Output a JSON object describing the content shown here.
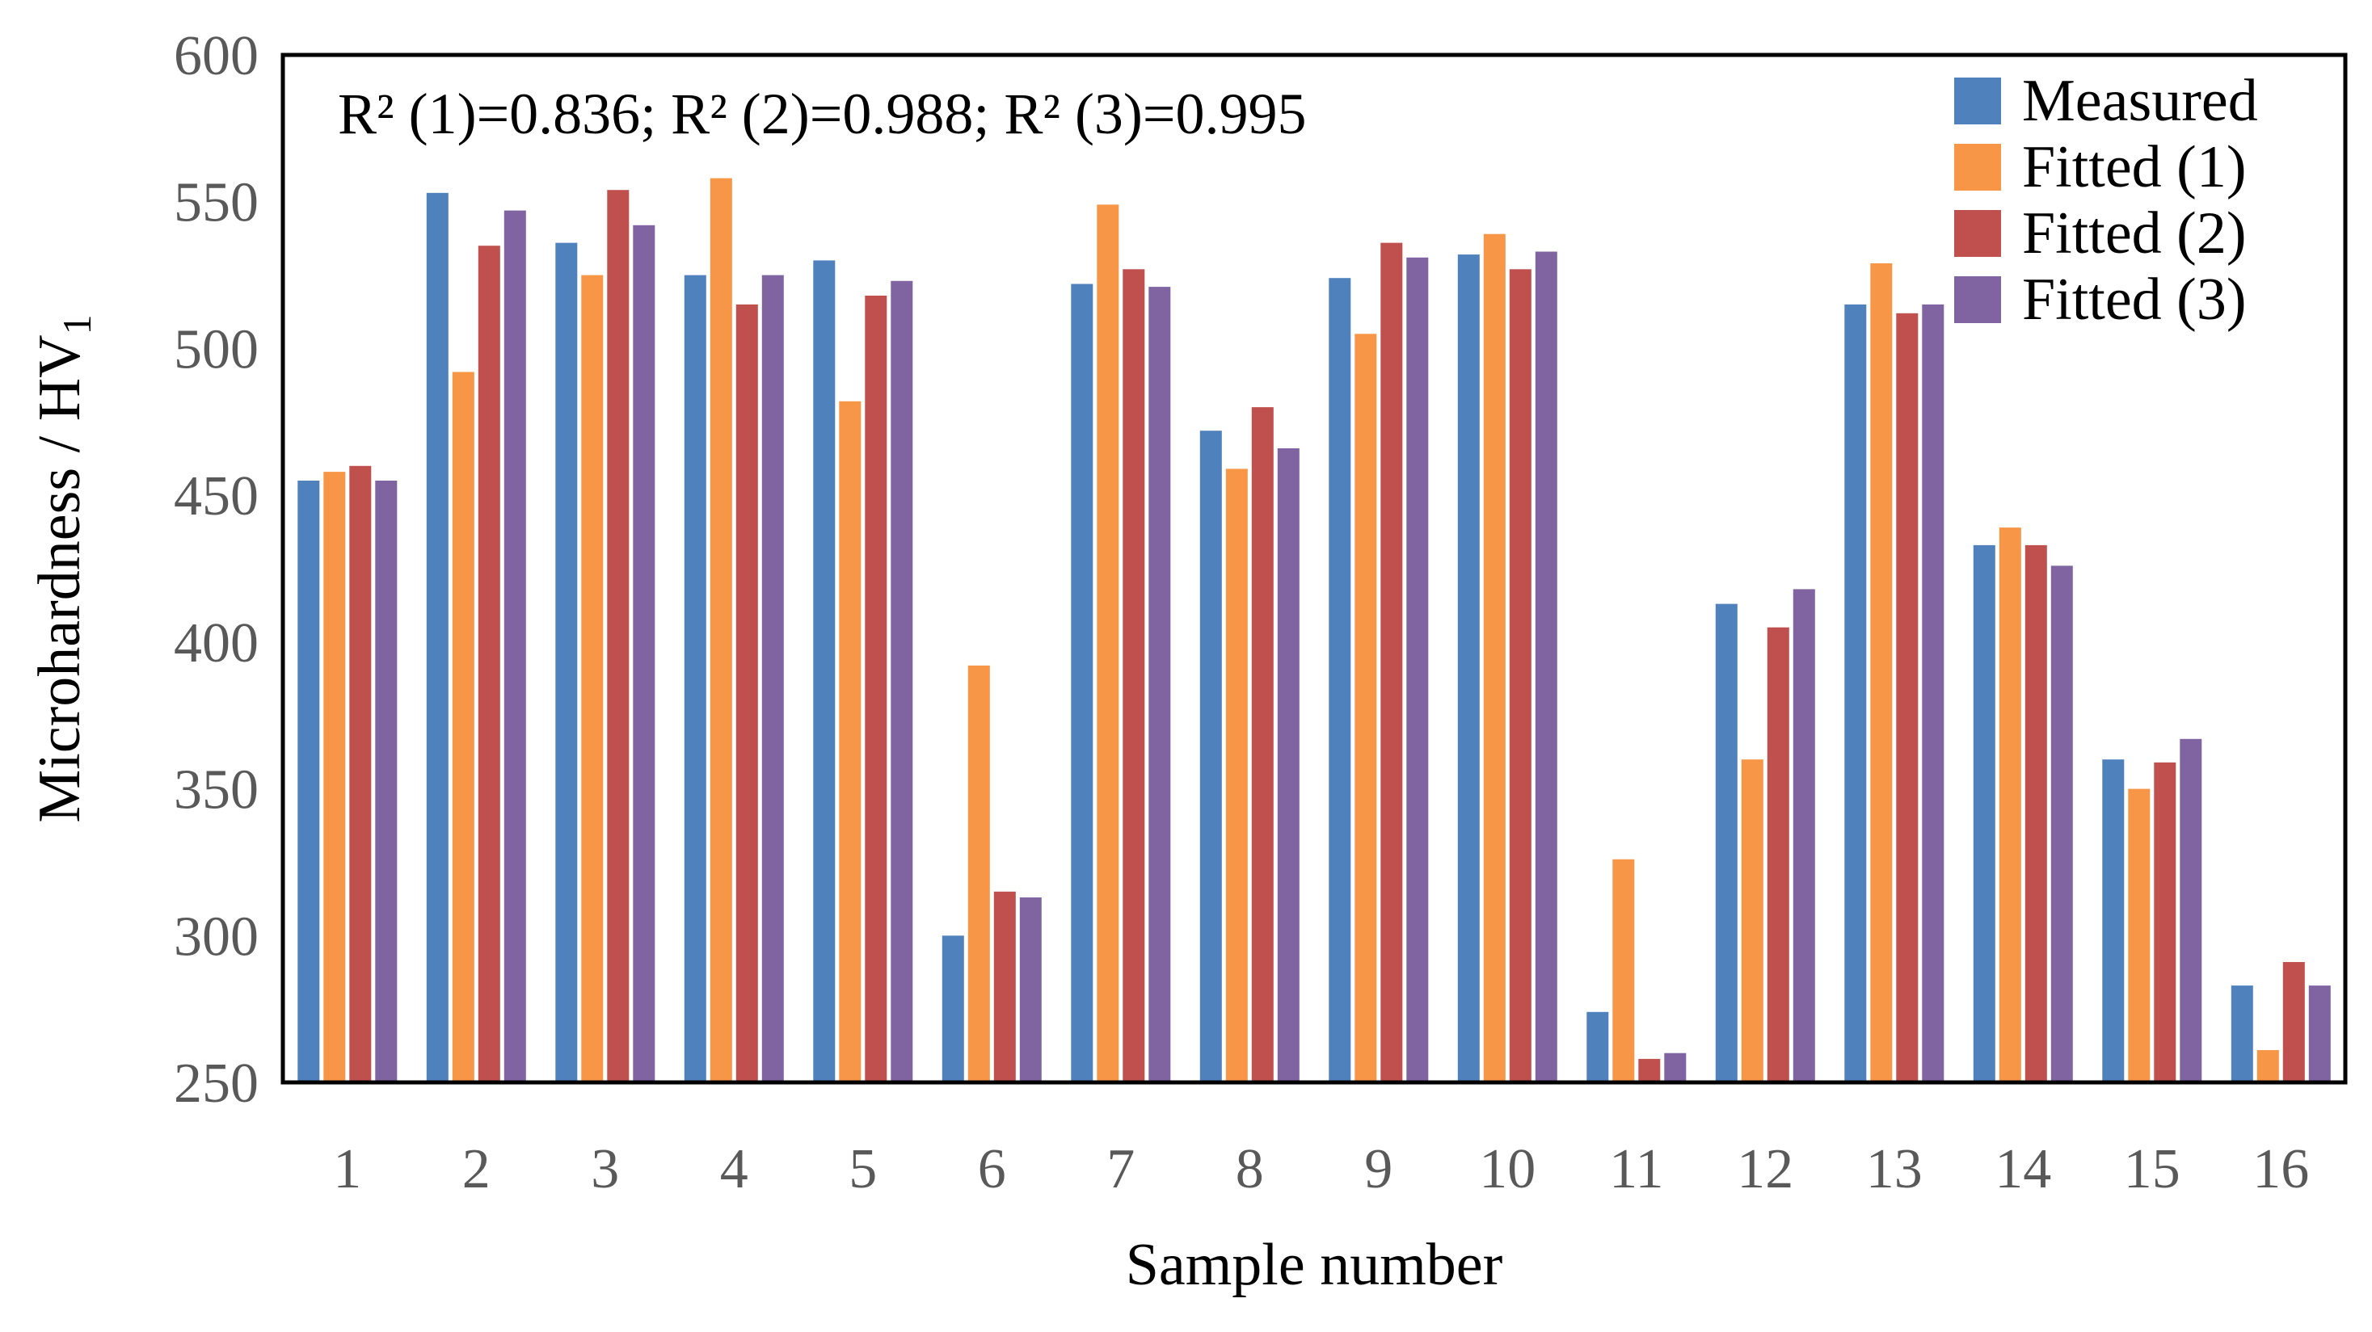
{
  "chart_data": {
    "type": "bar",
    "title": "",
    "xlabel": "Sample number",
    "ylabel": "Microhardness / HV",
    "ylabel_subscript": "1",
    "ylim": [
      250,
      600
    ],
    "yticks": [
      250,
      300,
      350,
      400,
      450,
      500,
      550,
      600
    ],
    "grid": false,
    "legend_position": "top-right",
    "categories": [
      "1",
      "2",
      "3",
      "4",
      "5",
      "6",
      "7",
      "8",
      "9",
      "10",
      "11",
      "12",
      "13",
      "14",
      "15",
      "16"
    ],
    "series": [
      {
        "name": "Measured",
        "color": "#4F81BD",
        "values": [
          455,
          553,
          536,
          525,
          530,
          300,
          522,
          472,
          524,
          532,
          274,
          413,
          515,
          433,
          360,
          283
        ]
      },
      {
        "name": "Fitted (1)",
        "color": "#F79646",
        "values": [
          458,
          492,
          525,
          558,
          482,
          392,
          549,
          459,
          505,
          539,
          326,
          360,
          529,
          439,
          350,
          261
        ]
      },
      {
        "name": "Fitted (2)",
        "color": "#C0504D",
        "values": [
          460,
          535,
          554,
          515,
          518,
          315,
          527,
          480,
          536,
          527,
          258,
          405,
          512,
          433,
          359,
          291
        ]
      },
      {
        "name": "Fitted (3)",
        "color": "#8064A2",
        "values": [
          455,
          547,
          542,
          525,
          523,
          313,
          521,
          466,
          531,
          533,
          260,
          418,
          515,
          426,
          367,
          283
        ]
      }
    ],
    "annotation": "R² (1)=0.836; R² (2)=0.988; R² (3)=0.995"
  }
}
